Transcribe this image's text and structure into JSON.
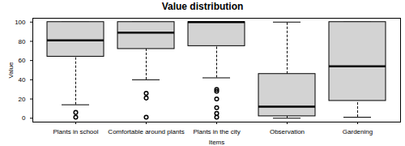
{
  "chart_data": {
    "type": "box",
    "title": "Value distribution",
    "x_label": "Items",
    "y_label": "Value",
    "categories": [
      "Plants in school",
      "Comfortable around plants",
      "Plants in the city",
      "Observation",
      "Gardening"
    ],
    "min": [
      14,
      40,
      42,
      0,
      1
    ],
    "q1": [
      64,
      72,
      75,
      2,
      18
    ],
    "median": [
      81,
      89,
      100,
      12,
      54
    ],
    "q3": [
      100,
      100,
      100,
      46,
      100
    ],
    "max": [
      100,
      100,
      100,
      100,
      100
    ],
    "outliers": [
      [
        6,
        1
      ],
      [
        26,
        21,
        1
      ],
      [
        30,
        28,
        20,
        11,
        5,
        1
      ],
      [],
      []
    ],
    "color": "#d3d3d3",
    "ylim": [
      -4,
      104
    ],
    "yticks": [
      0,
      20,
      40,
      60,
      80,
      100
    ],
    "grid": false
  }
}
